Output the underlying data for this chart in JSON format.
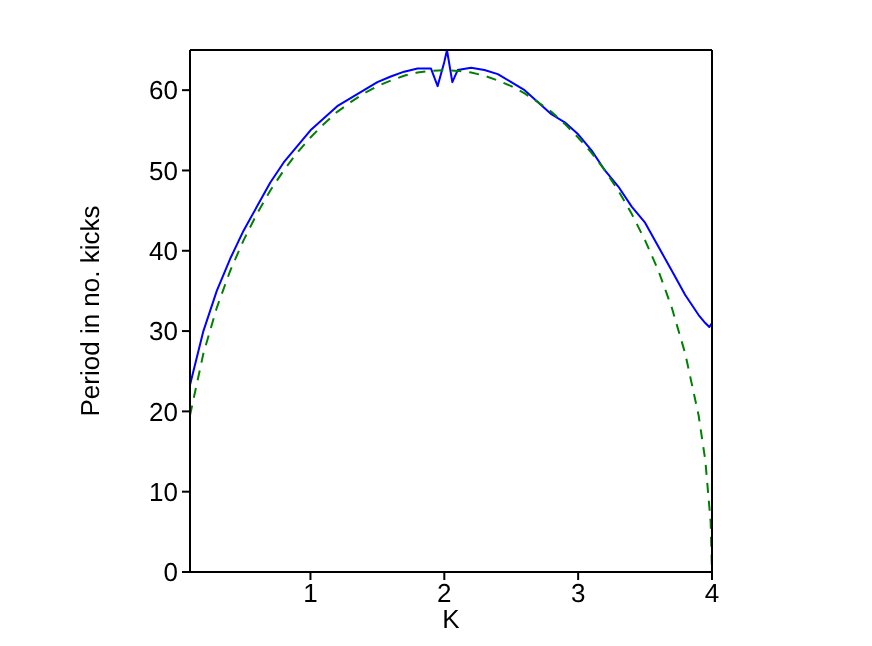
{
  "chart_data": {
    "type": "line",
    "xlabel": "K",
    "ylabel": "Period in no. kicks",
    "xlim": [
      0.1,
      4
    ],
    "ylim": [
      0,
      65
    ],
    "xticks": [
      1,
      2,
      3,
      4
    ],
    "yticks": [
      0,
      10,
      20,
      30,
      40,
      50,
      60
    ],
    "marker": "none",
    "series": [
      {
        "color": "#0000ff",
        "line_style": "solid",
        "x": [
          0.1,
          0.2,
          0.3,
          0.4,
          0.5,
          0.6,
          0.7,
          0.8,
          0.9,
          1.0,
          1.1,
          1.2,
          1.3,
          1.4,
          1.5,
          1.6,
          1.7,
          1.8,
          1.9,
          1.95,
          2.0,
          2.02,
          2.06,
          2.1,
          2.2,
          2.3,
          2.4,
          2.5,
          2.6,
          2.7,
          2.8,
          2.9,
          3.0,
          3.1,
          3.2,
          3.3,
          3.4,
          3.5,
          3.6,
          3.7,
          3.8,
          3.9,
          3.95,
          3.98,
          4.0
        ],
        "values": [
          23.3,
          30,
          35,
          39,
          42.5,
          45.5,
          48.5,
          51,
          53,
          55,
          56.5,
          58,
          59,
          60,
          61,
          61.7,
          62.3,
          62.7,
          62.7,
          60.5,
          63.5,
          65,
          61,
          62.5,
          62.8,
          62.5,
          62,
          61,
          60,
          58.5,
          57,
          56,
          54.5,
          52.5,
          50,
          48,
          45.5,
          43.5,
          40.5,
          37.5,
          34.5,
          32,
          31,
          30.5,
          31
        ]
      },
      {
        "color": "#008000",
        "line_style": "dashed",
        "x": [
          0.1,
          0.2,
          0.3,
          0.4,
          0.5,
          0.6,
          0.7,
          0.8,
          0.9,
          1.0,
          1.1,
          1.2,
          1.3,
          1.4,
          1.5,
          1.6,
          1.7,
          1.8,
          1.9,
          2.0,
          2.1,
          2.2,
          2.3,
          2.4,
          2.5,
          2.6,
          2.7,
          2.8,
          2.9,
          3.0,
          3.1,
          3.2,
          3.3,
          3.4,
          3.5,
          3.6,
          3.7,
          3.8,
          3.9,
          3.95,
          3.99,
          4.0
        ],
        "values": [
          19.5,
          27.2,
          32.9,
          37.5,
          41.3,
          44.6,
          47.5,
          50,
          52.2,
          54.1,
          55.8,
          57.3,
          58.5,
          59.6,
          60.5,
          61.2,
          61.8,
          62.2,
          62.4,
          62.5,
          62.4,
          62.2,
          61.8,
          61.2,
          60.5,
          59.6,
          58.5,
          57.3,
          55.8,
          54.1,
          52.2,
          50,
          47.5,
          44.6,
          41.3,
          37.5,
          32.9,
          27.2,
          19.5,
          13.9,
          6.2,
          0
        ]
      }
    ]
  }
}
